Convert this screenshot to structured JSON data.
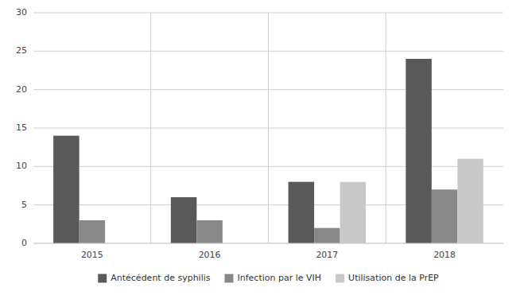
{
  "chart_data": {
    "type": "bar",
    "categories": [
      "2015",
      "2016",
      "2017",
      "2018"
    ],
    "series": [
      {
        "name": "Antécédent de syphilis",
        "color": "#595959",
        "values": [
          14,
          6,
          8,
          24
        ]
      },
      {
        "name": "Infection par le VIH",
        "color": "#888888",
        "values": [
          3,
          3,
          2,
          7
        ]
      },
      {
        "name": "Utilisation de la PrEP",
        "color": "#c8c8c8",
        "values": [
          0,
          0,
          8,
          11
        ]
      }
    ],
    "ylim": [
      0,
      30
    ],
    "yticks": [
      0,
      5,
      10,
      15,
      20,
      25,
      30
    ],
    "grid": true,
    "legend": "bottom"
  }
}
